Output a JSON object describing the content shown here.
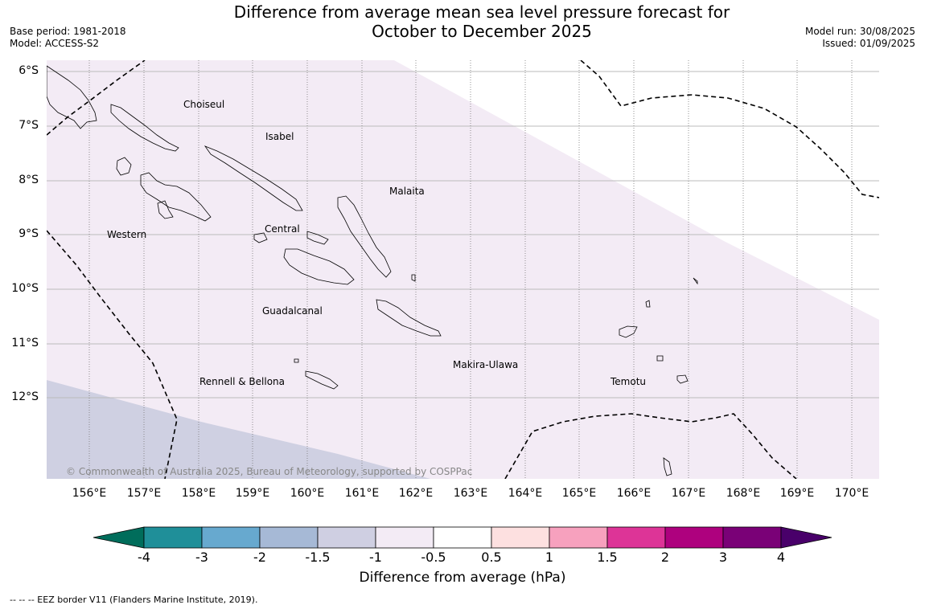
{
  "title": {
    "line1": "Difference from average mean sea level pressure forecast for",
    "line2": "October to December 2025"
  },
  "meta": {
    "base_period": "Base period: 1981-2018",
    "model": "Model: ACCESS-S2",
    "model_run": "Model run: 30/08/2025",
    "issued": "Issued: 01/09/2025"
  },
  "latitudes": [
    "6°S",
    "7°S",
    "8°S",
    "9°S",
    "10°S",
    "11°S",
    "12°S"
  ],
  "longitudes": [
    "156°E",
    "157°E",
    "158°E",
    "159°E",
    "160°E",
    "161°E",
    "162°E",
    "163°E",
    "164°E",
    "165°E",
    "166°E",
    "167°E",
    "168°E",
    "169°E",
    "170°E"
  ],
  "regions": {
    "choiseul": "Choiseul",
    "isabel": "Isabel",
    "malaita": "Malaita",
    "western": "Western",
    "central": "Central",
    "guadalcanal": "Guadalcanal",
    "makira": "Makira-Ulawa",
    "temotu": "Temotu",
    "rennell": "Rennell & Bellona"
  },
  "copyright": "© Commonwealth of Australia 2025, Bureau of Meteorology, supported by COSPPac",
  "colorbar": {
    "ticks": [
      "-4",
      "-3",
      "-2",
      "-1.5",
      "-1",
      "-0.5",
      "0.5",
      "1",
      "1.5",
      "2",
      "3",
      "4"
    ],
    "colors": {
      "below": "#006d5b",
      "c1": "#1f8f99",
      "c2": "#67a9cf",
      "c3": "#a6b9d6",
      "c4": "#cfcfe2",
      "c5": "#f3ebf5",
      "c6": "#ffffff",
      "c7": "#fde0e0",
      "c8": "#f7a1be",
      "c9": "#dd3497",
      "c10": "#ae017e",
      "c11": "#7a0177",
      "above": "#49006a"
    },
    "label": "Difference from average (hPa)"
  },
  "footer": "--  --  -- EEZ border V11 (Flanders Marine Institute, 2019)."
}
